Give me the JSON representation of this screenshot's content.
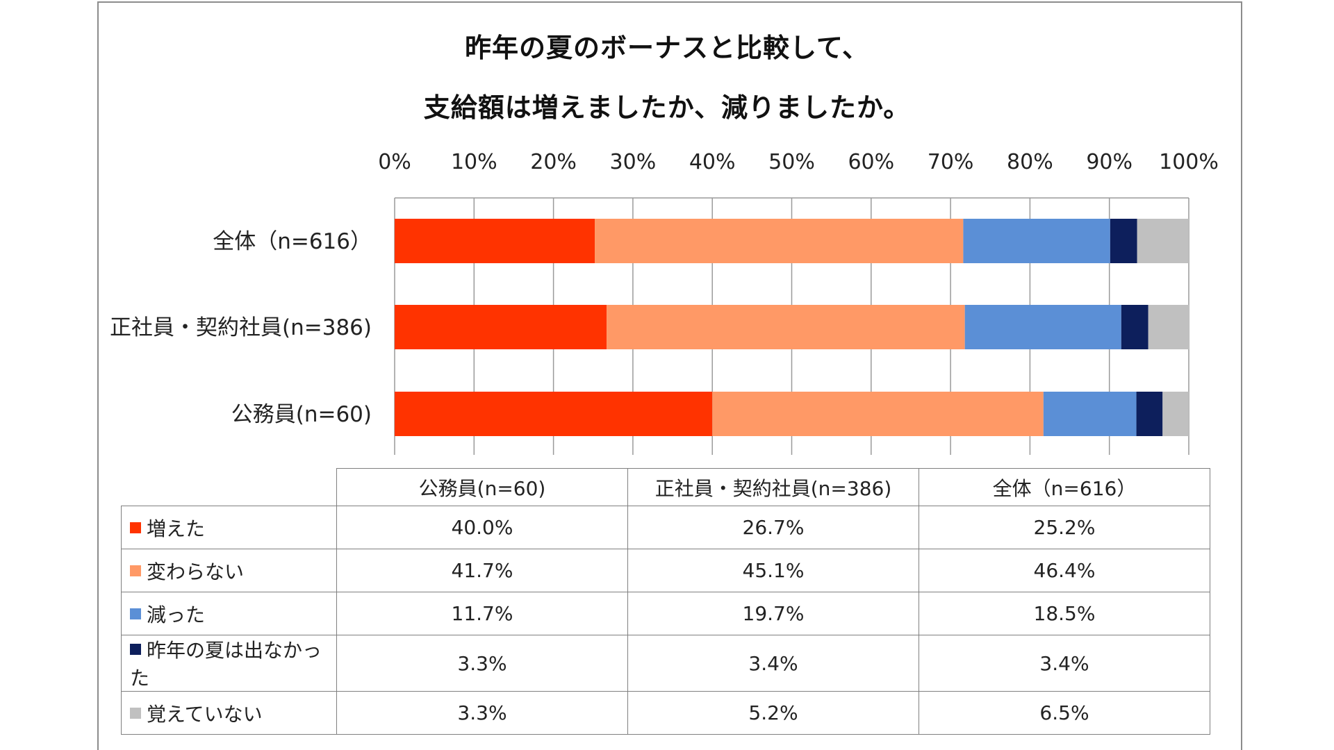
{
  "chart_data": {
    "type": "bar",
    "orientation": "horizontal",
    "stacked": "percent",
    "title": [
      "昨年の夏のボーナスと比較して、",
      "支給額は増えましたか、減りましたか。"
    ],
    "categories": [
      "全体（n=616）",
      "正社員・契約社員(n=386)",
      "公務員(n=60)"
    ],
    "xlim": [
      0,
      100
    ],
    "xticks": [
      "0%",
      "10%",
      "20%",
      "30%",
      "40%",
      "50%",
      "60%",
      "70%",
      "80%",
      "90%",
      "100%"
    ],
    "grid": true,
    "series": [
      {
        "name": "増えた",
        "color": "#ff3300",
        "values": [
          25.2,
          26.7,
          40.0
        ]
      },
      {
        "name": "変わらない",
        "color": "#ff9966",
        "values": [
          46.4,
          45.1,
          41.7
        ]
      },
      {
        "name": "減った",
        "color": "#5b8fd6",
        "values": [
          18.5,
          19.7,
          11.7
        ]
      },
      {
        "name": "昨年の夏は出なかった",
        "color": "#0d1f5c",
        "values": [
          3.4,
          3.4,
          3.3
        ]
      },
      {
        "name": "覚えていない",
        "color": "#c0c0c0",
        "values": [
          6.5,
          5.2,
          3.3
        ]
      }
    ]
  },
  "table": {
    "headers": [
      "公務員(n=60)",
      "正社員・契約社員(n=386)",
      "全体（n=616）"
    ],
    "rows": [
      {
        "label": "増えた",
        "cells": [
          "40.0%",
          "26.7%",
          "25.2%"
        ]
      },
      {
        "label": "変わらない",
        "cells": [
          "41.7%",
          "45.1%",
          "46.4%"
        ]
      },
      {
        "label": "減った",
        "cells": [
          "11.7%",
          "19.7%",
          "18.5%"
        ]
      },
      {
        "label": "昨年の夏は出なかった",
        "cells": [
          "3.3%",
          "3.4%",
          "3.4%"
        ]
      },
      {
        "label": "覚えていない",
        "cells": [
          "3.3%",
          "5.2%",
          "6.5%"
        ]
      }
    ]
  }
}
